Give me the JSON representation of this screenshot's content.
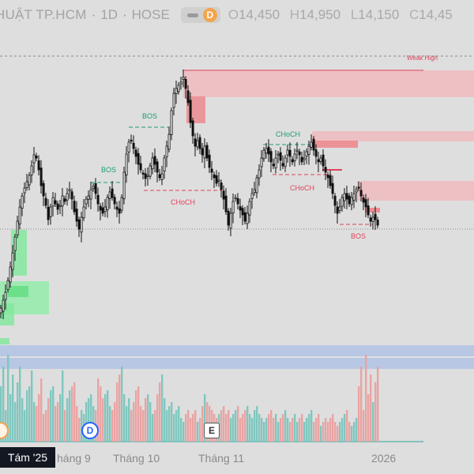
{
  "header": {
    "symbol": "HUẬT TP.HCM",
    "separator": "·",
    "interval": "1D",
    "exchange": "HOSE",
    "badge": "D",
    "open_label": "O",
    "open": "14,450",
    "high_label": "H",
    "high": "14,950",
    "low_label": "L",
    "low": "14,150",
    "close_label": "C",
    "close": "14,45"
  },
  "axis": {
    "labels": [
      "Tám '25",
      "háng 9",
      "Tháng 10",
      "Tháng 11",
      "2026"
    ],
    "current_date": "Tám '25"
  },
  "events": [
    {
      "kind": "D",
      "label": "D"
    },
    {
      "kind": "E",
      "label": "E"
    }
  ],
  "colors": {
    "background": "#dedede",
    "bull": "#26a69a",
    "bear": "#ef5350",
    "bull_volume": "#7fc7bf",
    "bear_volume": "#eaa3a3",
    "bull_zone": "#7ee89a",
    "bear_zone": "#f1a9ad",
    "label_green": "#1b9e6f",
    "label_red": "#e0435b",
    "band": "#a9bfe6"
  },
  "chart_data": {
    "type": "candlestick",
    "symbol": "HUẬT TP.HCM",
    "interval": "1D",
    "exchange": "HOSE",
    "ohlc_last": {
      "open": 14450,
      "high": 14950,
      "low": 14150,
      "close": "14,45"
    },
    "annotations": [
      {
        "text": "Weak High",
        "kind": "level"
      },
      {
        "text": "BOS",
        "kind": "structure"
      },
      {
        "text": "BOS",
        "kind": "structure"
      },
      {
        "text": "CHoCH",
        "kind": "structure"
      },
      {
        "text": "CHoCH",
        "kind": "structure"
      },
      {
        "text": "CHoCH",
        "kind": "structure"
      },
      {
        "text": "BOS",
        "kind": "structure"
      }
    ],
    "xlabels": [
      "Tám '25",
      "háng 9",
      "Tháng 10",
      "Tháng 11",
      "2026"
    ],
    "grid": false
  }
}
